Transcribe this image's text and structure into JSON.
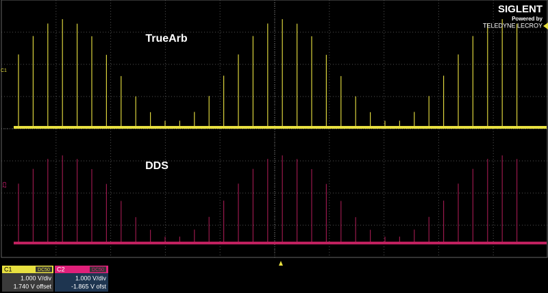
{
  "logo": {
    "brand": "SIGLENT",
    "powered_by": "Powered by",
    "maker": "TELEDYNE LECROY"
  },
  "traces": [
    {
      "label": "TrueArb",
      "marker": "C1"
    },
    {
      "label": "DDS",
      "marker": "C2"
    }
  ],
  "channels": [
    {
      "name": "C1",
      "coupling": "DC50",
      "scale": "1.000 V/div",
      "offset": "1.740 V offset"
    },
    {
      "name": "C2",
      "coupling": "DC50",
      "scale": "1.000 V/div",
      "offset": "-1.865 V ofst"
    }
  ]
}
